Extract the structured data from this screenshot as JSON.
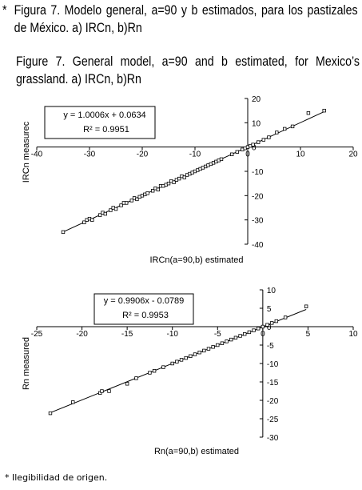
{
  "caption": {
    "marker": "*",
    "spanish": "Figura 7. Modelo general, a=90 y b estimados, para los pastizales de México. a) IRCn, b)Rn",
    "english": "Figure 7. General model, a=90 and b estimated, for Mexico’s grassland. a) IRCn, b)Rn"
  },
  "footnote": "* Ilegibilidad de origen.",
  "chart_data": [
    {
      "type": "scatter",
      "title": "",
      "xlabel": "IRCn(a=90,b) estimated",
      "ylabel": "IRCn measurec",
      "xlim": [
        -40,
        20
      ],
      "ylim": [
        -40,
        20
      ],
      "x_ticks": [
        -40,
        -30,
        -20,
        -10,
        0,
        10,
        20
      ],
      "y_ticks": [
        20,
        10,
        0,
        -10,
        -20,
        -30,
        -40
      ],
      "grid": false,
      "equation": "y = 1.0006x + 0.0634",
      "r2": "R² = 0.9951",
      "trendline": {
        "slope": 1.0006,
        "intercept": 0.0634,
        "x_range": [
          -35,
          14.5
        ]
      },
      "points": [
        [
          -35,
          -35
        ],
        [
          -31,
          -31
        ],
        [
          -30.5,
          -30
        ],
        [
          -30,
          -29.5
        ],
        [
          -29.5,
          -30
        ],
        [
          -28,
          -28
        ],
        [
          -27.5,
          -27
        ],
        [
          -27,
          -27.5
        ],
        [
          -26,
          -26
        ],
        [
          -25.5,
          -25
        ],
        [
          -25,
          -25.5
        ],
        [
          -24,
          -24
        ],
        [
          -23.5,
          -23
        ],
        [
          -23,
          -23
        ],
        [
          -22,
          -22
        ],
        [
          -21.5,
          -21
        ],
        [
          -21,
          -21.5
        ],
        [
          -20.5,
          -20.5
        ],
        [
          -20,
          -20
        ],
        [
          -19.5,
          -19.5
        ],
        [
          -19,
          -19
        ],
        [
          -18,
          -18
        ],
        [
          -17.5,
          -17
        ],
        [
          -17,
          -17.5
        ],
        [
          -16.5,
          -16
        ],
        [
          -16,
          -16
        ],
        [
          -15.5,
          -15.5
        ],
        [
          -15,
          -15
        ],
        [
          -14.5,
          -14
        ],
        [
          -14,
          -14.5
        ],
        [
          -13.5,
          -13.5
        ],
        [
          -13,
          -13
        ],
        [
          -12.5,
          -12
        ],
        [
          -12,
          -12.5
        ],
        [
          -11.5,
          -11.5
        ],
        [
          -11,
          -11
        ],
        [
          -10.5,
          -10.5
        ],
        [
          -10,
          -10
        ],
        [
          -9.5,
          -9.5
        ],
        [
          -9,
          -9
        ],
        [
          -8.5,
          -8.5
        ],
        [
          -8,
          -8
        ],
        [
          -7.5,
          -7.5
        ],
        [
          -7,
          -7
        ],
        [
          -6.5,
          -6.5
        ],
        [
          -6,
          -6
        ],
        [
          -5.5,
          -5.5
        ],
        [
          -5,
          -5
        ],
        [
          -3,
          -3
        ],
        [
          -2,
          -2
        ],
        [
          -1,
          -1
        ],
        [
          -0.5,
          -0.5
        ],
        [
          0,
          0
        ],
        [
          0.5,
          0.5
        ],
        [
          1,
          1
        ],
        [
          2,
          2
        ],
        [
          3,
          3
        ],
        [
          4,
          4
        ],
        [
          5.5,
          6
        ],
        [
          7,
          7.5
        ],
        [
          8.5,
          8.5
        ],
        [
          11.5,
          14
        ],
        [
          14.5,
          15
        ]
      ]
    },
    {
      "type": "scatter",
      "title": "",
      "xlabel": "Rn(a=90,b) estimated",
      "ylabel": "Rn measured",
      "xlim": [
        -25,
        10
      ],
      "ylim": [
        -30,
        10
      ],
      "x_ticks": [
        -25,
        -20,
        -15,
        -10,
        -5,
        0,
        5,
        10
      ],
      "y_ticks": [
        10,
        5,
        0,
        -5,
        -10,
        -15,
        -20,
        -25,
        -30
      ],
      "grid": false,
      "equation": "y = 0.9906x - 0.0789",
      "r2": "R² = 0.9953",
      "trendline": {
        "slope": 0.9906,
        "intercept": -0.0789,
        "x_range": [
          -23.5,
          4.8
        ]
      },
      "points": [
        [
          -23.5,
          -23.5
        ],
        [
          -21,
          -20.5
        ],
        [
          -18,
          -18
        ],
        [
          -17.8,
          -17.5
        ],
        [
          -17,
          -17.5
        ],
        [
          -15,
          -15.5
        ],
        [
          -14,
          -14
        ],
        [
          -12.5,
          -12.5
        ],
        [
          -12,
          -12
        ],
        [
          -11,
          -11
        ],
        [
          -10,
          -10
        ],
        [
          -9.5,
          -9.5
        ],
        [
          -9,
          -9
        ],
        [
          -8.5,
          -8.5
        ],
        [
          -8,
          -8
        ],
        [
          -7.5,
          -7.5
        ],
        [
          -7,
          -7
        ],
        [
          -6.5,
          -6.5
        ],
        [
          -6,
          -6
        ],
        [
          -5.5,
          -5.5
        ],
        [
          -5,
          -5
        ],
        [
          -4.5,
          -4.5
        ],
        [
          -4,
          -4
        ],
        [
          -3.5,
          -3.5
        ],
        [
          -3,
          -3
        ],
        [
          -2.5,
          -2.5
        ],
        [
          -2,
          -2
        ],
        [
          -1.5,
          -1.5
        ],
        [
          -1,
          -1
        ],
        [
          -0.5,
          -0.5
        ],
        [
          0,
          0
        ],
        [
          0.5,
          0.5
        ],
        [
          1,
          1
        ],
        [
          1.5,
          1.5
        ],
        [
          2.5,
          2.5
        ],
        [
          4.8,
          5.5
        ]
      ]
    }
  ]
}
